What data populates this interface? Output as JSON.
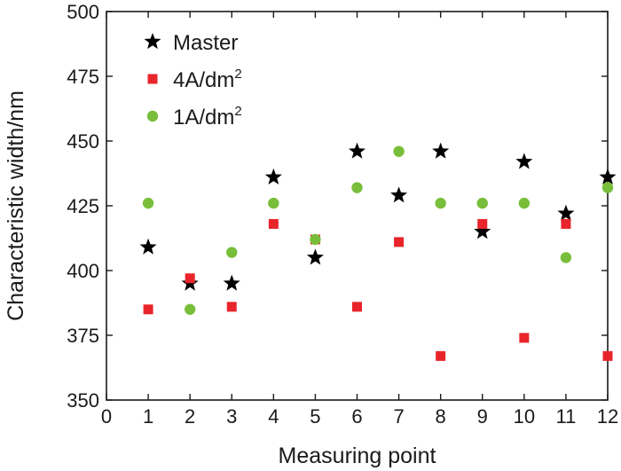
{
  "chart_data": {
    "type": "scatter",
    "xlabel": "Measuring point",
    "ylabel": "Characteristic width/nm",
    "xlim": [
      0,
      12
    ],
    "ylim": [
      350,
      500
    ],
    "x_ticks": [
      "0",
      "1",
      "2",
      "3",
      "4",
      "5",
      "6",
      "7",
      "8",
      "9",
      "10",
      "11",
      "12"
    ],
    "y_ticks": [
      "350",
      "375",
      "400",
      "425",
      "450",
      "475",
      "500"
    ],
    "grid": false,
    "legend_position": "top-left",
    "x": [
      1,
      2,
      3,
      4,
      5,
      6,
      7,
      8,
      9,
      10,
      11,
      12
    ],
    "series": [
      {
        "name": "Master",
        "label_main": "Master",
        "label_sup": "",
        "marker": "star",
        "color": "#000000",
        "values": [
          409,
          395,
          395,
          436,
          405,
          446,
          429,
          446,
          415,
          442,
          422,
          436
        ]
      },
      {
        "name": "4A/dm2",
        "label_main": "4A/dm",
        "label_sup": "2",
        "marker": "square",
        "color": "#e8252b",
        "values": [
          385,
          397,
          386,
          418,
          412,
          386,
          411,
          367,
          418,
          374,
          418,
          367
        ]
      },
      {
        "name": "1A/dm2",
        "label_main": "1A/dm",
        "label_sup": "2",
        "marker": "circle",
        "color": "#79be3a",
        "values": [
          426,
          385,
          407,
          426,
          412,
          432,
          446,
          426,
          426,
          426,
          405,
          432
        ]
      }
    ]
  }
}
